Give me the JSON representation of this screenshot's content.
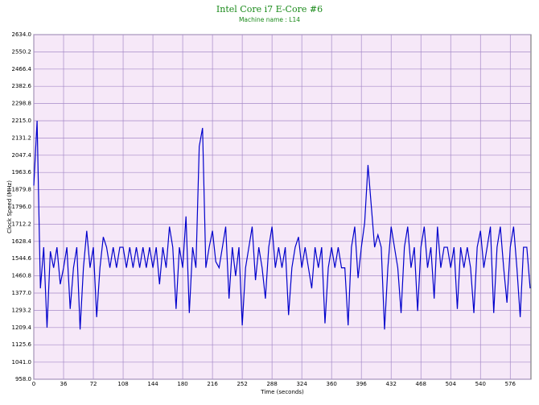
{
  "chart_data": {
    "type": "line",
    "title": "Intel Core i7 E-Core #6",
    "subtitle": "Machine name : L14",
    "x_label": "Time (seconds)",
    "y_label": "Clock Speed (MHz)",
    "color": "#0000cc",
    "grid": true,
    "xlim": [
      0,
      601
    ],
    "xticks": [
      0,
      36,
      72,
      108,
      144,
      180,
      216,
      252,
      288,
      324,
      360,
      396,
      432,
      468,
      504,
      540,
      576
    ],
    "ylim": [
      958,
      2634
    ],
    "yticks": [
      {
        "value": 958,
        "label": "958.0"
      },
      {
        "value": 1041,
        "label": "1041.0"
      },
      1125.6,
      1209.4,
      1293.2,
      {
        "value": 1377,
        "label": "1377.0"
      },
      1460.8,
      1544.6,
      1628.4,
      1712.2,
      {
        "value": 1796,
        "label": "1796.0"
      },
      1879.8,
      1963.6,
      2047.4,
      2131.2,
      {
        "value": 2215,
        "label": "2215.0"
      },
      2298.8,
      2382.6,
      2466.4,
      2550.2,
      {
        "value": 2634,
        "label": "2634.0"
      }
    ],
    "x": [
      0,
      4,
      8,
      12,
      16,
      20,
      24,
      28,
      32,
      36,
      40,
      44,
      48,
      52,
      56,
      60,
      64,
      68,
      72,
      76,
      80,
      84,
      88,
      92,
      96,
      100,
      104,
      108,
      112,
      116,
      120,
      124,
      128,
      132,
      136,
      140,
      144,
      148,
      152,
      156,
      160,
      164,
      168,
      172,
      176,
      180,
      184,
      188,
      192,
      196,
      200,
      204,
      208,
      212,
      216,
      220,
      224,
      228,
      232,
      236,
      240,
      244,
      248,
      252,
      256,
      260,
      264,
      268,
      272,
      276,
      280,
      284,
      288,
      292,
      296,
      300,
      304,
      308,
      312,
      316,
      320,
      324,
      328,
      332,
      336,
      340,
      344,
      348,
      352,
      356,
      360,
      364,
      368,
      372,
      376,
      380,
      384,
      388,
      392,
      396,
      400,
      404,
      408,
      412,
      416,
      420,
      424,
      428,
      432,
      436,
      440,
      444,
      448,
      452,
      456,
      460,
      464,
      468,
      472,
      476,
      480,
      484,
      488,
      492,
      496,
      500,
      504,
      508,
      512,
      516,
      520,
      524,
      528,
      532,
      536,
      540,
      544,
      548,
      552,
      556,
      560,
      564,
      568,
      572,
      576,
      580,
      584,
      588,
      592,
      596,
      600
    ],
    "values": [
      1900,
      2215,
      1400,
      1600,
      1209,
      1580,
      1500,
      1600,
      1420,
      1500,
      1600,
      1300,
      1500,
      1600,
      1200,
      1500,
      1680,
      1500,
      1600,
      1260,
      1500,
      1650,
      1600,
      1500,
      1600,
      1500,
      1600,
      1600,
      1500,
      1600,
      1500,
      1600,
      1500,
      1600,
      1500,
      1600,
      1500,
      1600,
      1420,
      1600,
      1500,
      1700,
      1600,
      1300,
      1600,
      1500,
      1750,
      1280,
      1600,
      1500,
      2090,
      2180,
      1500,
      1600,
      1680,
      1530,
      1500,
      1600,
      1700,
      1350,
      1600,
      1460,
      1600,
      1220,
      1500,
      1600,
      1700,
      1440,
      1600,
      1500,
      1350,
      1600,
      1700,
      1500,
      1600,
      1500,
      1600,
      1270,
      1500,
      1600,
      1650,
      1500,
      1600,
      1500,
      1400,
      1600,
      1500,
      1600,
      1230,
      1500,
      1600,
      1500,
      1600,
      1500,
      1500,
      1220,
      1600,
      1700,
      1450,
      1600,
      1720,
      2000,
      1800,
      1600,
      1660,
      1600,
      1200,
      1500,
      1700,
      1600,
      1500,
      1280,
      1600,
      1700,
      1500,
      1600,
      1290,
      1600,
      1700,
      1500,
      1600,
      1350,
      1700,
      1500,
      1600,
      1600,
      1500,
      1600,
      1300,
      1600,
      1500,
      1600,
      1500,
      1280,
      1600,
      1680,
      1500,
      1600,
      1700,
      1280,
      1600,
      1700,
      1500,
      1330,
      1600,
      1700,
      1500,
      1260,
      1600,
      1600,
      1400
    ]
  }
}
